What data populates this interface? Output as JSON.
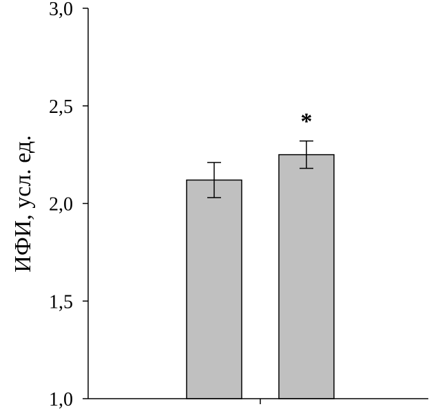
{
  "chart_data": {
    "type": "bar",
    "title": "",
    "xlabel": "",
    "ylabel": "ИФИ, усл. ед.",
    "ylim": [
      1.0,
      3.0
    ],
    "yticks": [
      1.0,
      1.5,
      2.0,
      2.5,
      3.0
    ],
    "ytick_labels": [
      "1,0",
      "1,5",
      "2,0",
      "2,5",
      "3,0"
    ],
    "categories": [
      "",
      ""
    ],
    "values": [
      2.12,
      2.25
    ],
    "errors": [
      0.09,
      0.07
    ],
    "annotations": [
      "",
      "*"
    ],
    "bar_color": "#c0c0c0",
    "grid": false,
    "legend": "none"
  }
}
